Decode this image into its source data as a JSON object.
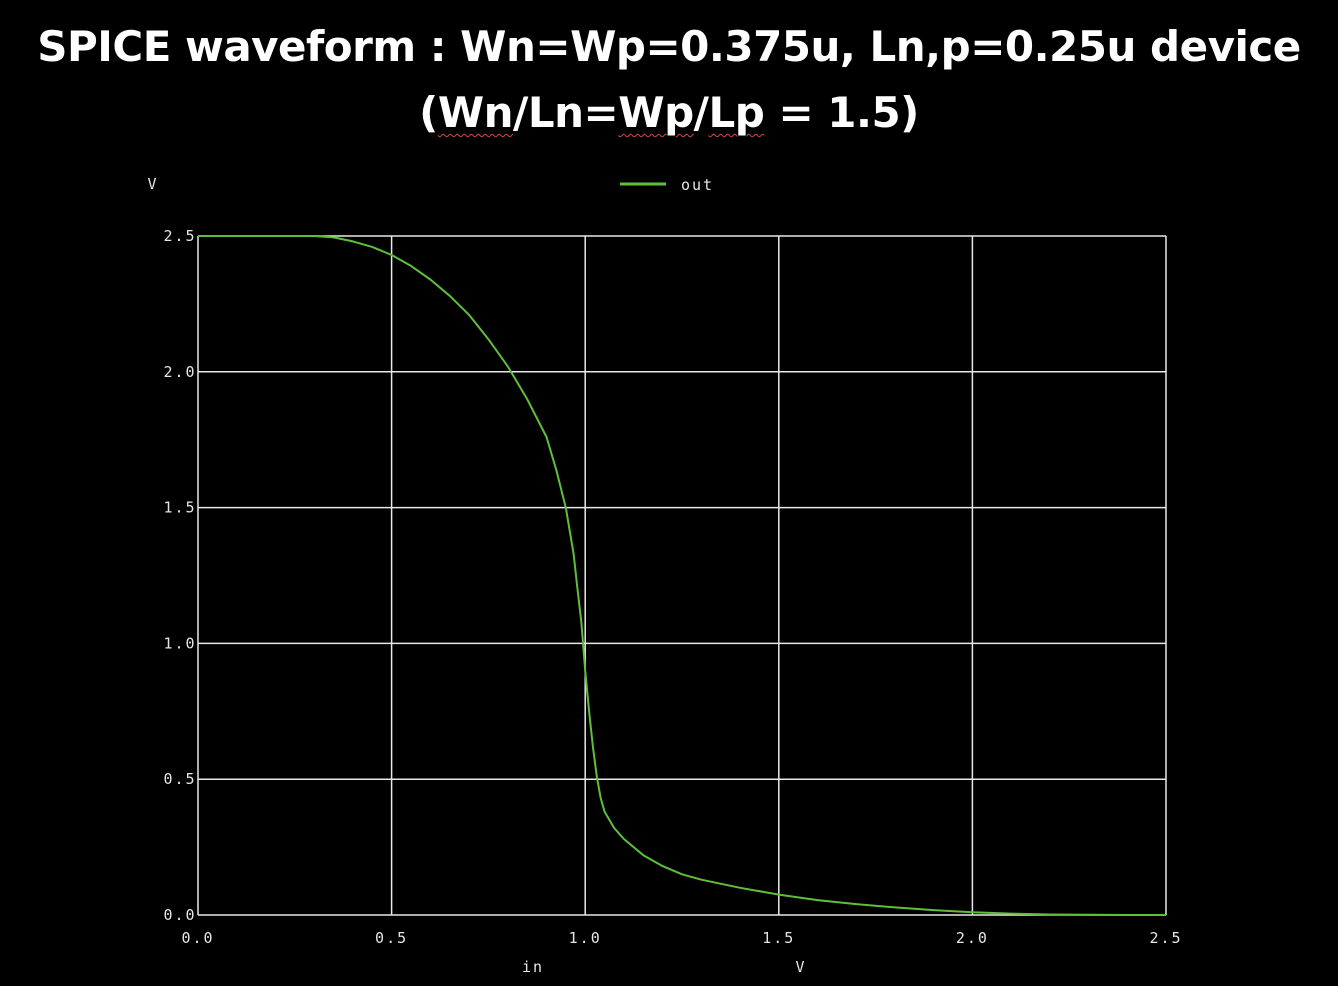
{
  "header": {
    "title_line1": "SPICE waveform : Wn=Wp=0.375u, Ln,p=0.25u device",
    "title_line2": {
      "open": "(",
      "w1": "Wn",
      "s1": "/Ln=",
      "w2": "Wp",
      "s2": "/",
      "w3": "Lp",
      "tail": " = 1.5)"
    }
  },
  "chart_data": {
    "type": "line",
    "xlabel": "in",
    "xunit": "V",
    "yunit": "V",
    "xlim": [
      0.0,
      2.5
    ],
    "ylim": [
      0.0,
      2.5
    ],
    "xticks": [
      "0.0",
      "0.5",
      "1.0",
      "1.5",
      "2.0",
      "2.5"
    ],
    "yticks": [
      "0.0",
      "0.5",
      "1.0",
      "1.5",
      "2.0",
      "2.5"
    ],
    "grid": true,
    "legend_position": "top-center",
    "series": [
      {
        "name": "out",
        "color": "#5fbf3a",
        "x": [
          0.0,
          0.2,
          0.3,
          0.35,
          0.4,
          0.45,
          0.5,
          0.55,
          0.6,
          0.65,
          0.7,
          0.75,
          0.8,
          0.85,
          0.9,
          0.925,
          0.95,
          0.97,
          0.98,
          0.99,
          1.0,
          1.01,
          1.02,
          1.03,
          1.04,
          1.05,
          1.075,
          1.1,
          1.15,
          1.2,
          1.25,
          1.3,
          1.4,
          1.5,
          1.6,
          1.7,
          1.8,
          1.9,
          2.0,
          2.1,
          2.2,
          2.3,
          2.4,
          2.5
        ],
        "y": [
          2.5,
          2.5,
          2.5,
          2.495,
          2.48,
          2.46,
          2.43,
          2.39,
          2.34,
          2.28,
          2.21,
          2.12,
          2.02,
          1.9,
          1.76,
          1.64,
          1.5,
          1.33,
          1.2,
          1.08,
          0.9,
          0.75,
          0.62,
          0.51,
          0.43,
          0.38,
          0.32,
          0.28,
          0.22,
          0.18,
          0.15,
          0.13,
          0.1,
          0.075,
          0.055,
          0.04,
          0.028,
          0.018,
          0.01,
          0.005,
          0.002,
          0.001,
          0.0,
          0.0
        ]
      }
    ]
  }
}
